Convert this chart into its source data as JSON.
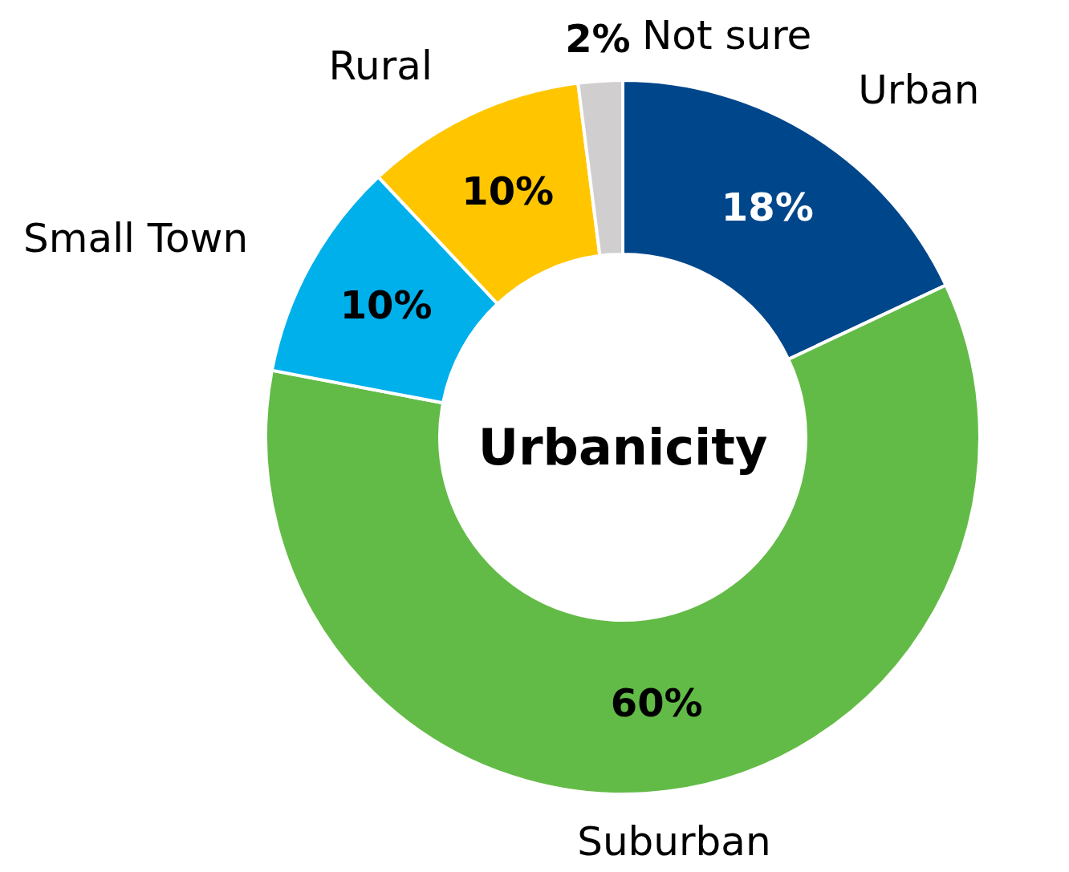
{
  "chart_data": {
    "type": "donut",
    "title": "Urbanicity",
    "categories": [
      "Urban",
      "Suburban",
      "Small Town",
      "Rural",
      "Not sure"
    ],
    "values": [
      18,
      60,
      10,
      10,
      2
    ],
    "colors": [
      "#00468b",
      "#63bb47",
      "#00b0eb",
      "#ffc600",
      "#d0cece"
    ],
    "value_labels": [
      "18%",
      "60%",
      "10%",
      "10%",
      "2%"
    ]
  }
}
